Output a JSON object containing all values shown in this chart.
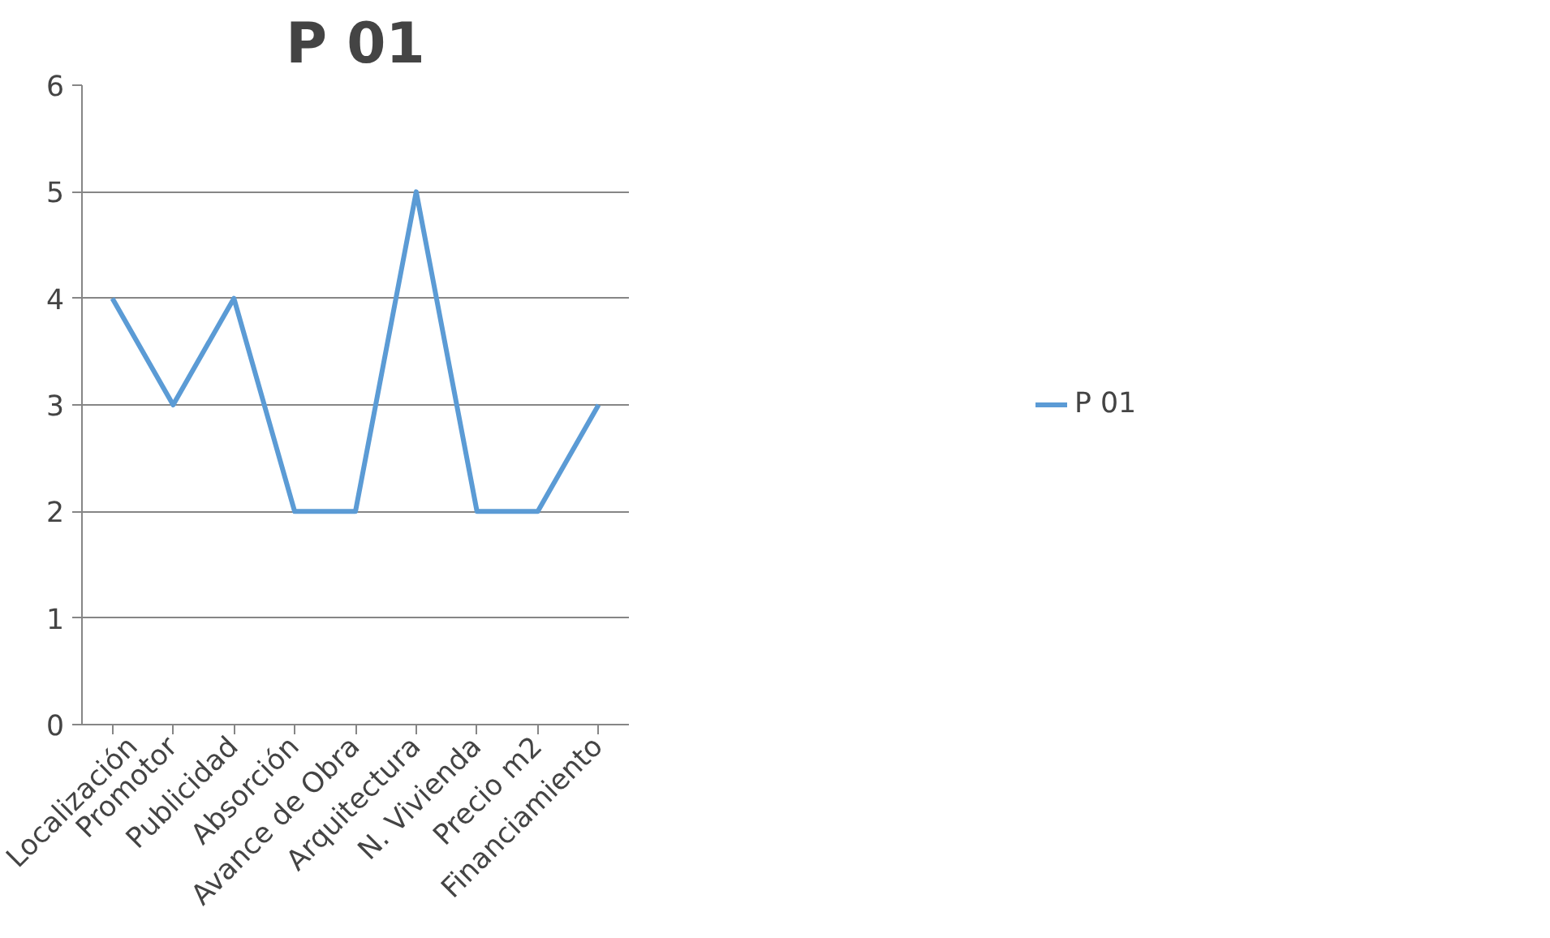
{
  "chart_data": {
    "type": "line",
    "title": "P 01",
    "categories": [
      "Localización",
      "Promotor",
      "Publicidad",
      "Absorción",
      "Avance de Obra",
      "Arquitectura",
      "N. Vivienda",
      "Precio m2",
      "Financiamiento"
    ],
    "series": [
      {
        "name": "P 01",
        "color": "#5b9bd5",
        "values": [
          4,
          3,
          4,
          2,
          2,
          5,
          2,
          2,
          3
        ]
      }
    ],
    "ylim": [
      0,
      6
    ],
    "yticks": [
      0,
      1,
      2,
      3,
      4,
      5,
      6
    ],
    "grid": "y",
    "legend": "right",
    "marker": "none",
    "line_style": "solid"
  }
}
